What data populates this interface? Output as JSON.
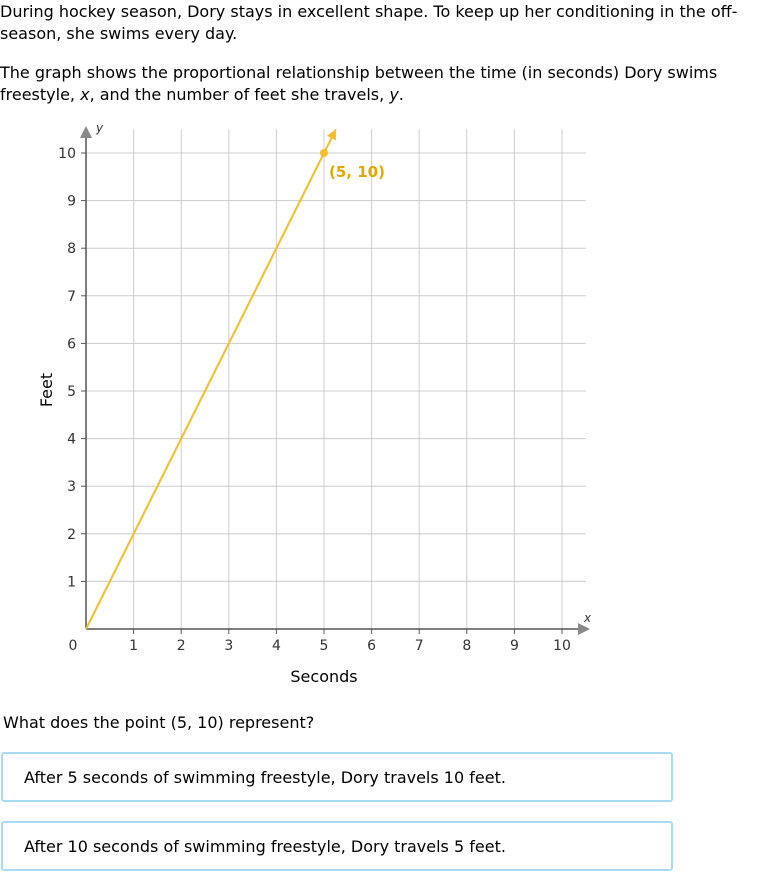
{
  "problem": {
    "intro_1a": "During hockey season, Dory stays in excellent shape. To keep up her conditioning in the off-",
    "intro_1b": "season, she swims every day.",
    "intro_2a": "The graph shows the proportional relationship between the time (in seconds) Dory swims",
    "intro_2b_pre": "freestyle, ",
    "intro_2b_x": "x",
    "intro_2b_mid": ", and the number of feet she travels, ",
    "intro_2b_y": "y",
    "intro_2b_end": ".",
    "question": "What does the point (5, 10) represent?"
  },
  "choices": [
    {
      "label": "After 5 seconds of swimming freestyle, Dory travels 10 feet."
    },
    {
      "label": "After 10 seconds of swimming freestyle, Dory travels 5 feet."
    }
  ],
  "colors": {
    "line": "#f5bd2a",
    "point_label": "#e1a800",
    "grid": "#cccccc",
    "axis": "#555555",
    "choice_border": "#a8dcf2"
  },
  "chart_data": {
    "type": "line",
    "xlabel": "Seconds",
    "ylabel": "Feet",
    "x_axis_name": "x",
    "y_axis_name": "y",
    "xlim": [
      0,
      10
    ],
    "ylim": [
      0,
      10
    ],
    "grid": true,
    "x_ticks": [
      "0",
      "1",
      "2",
      "3",
      "4",
      "5",
      "6",
      "7",
      "8",
      "9",
      "10"
    ],
    "y_ticks": [
      "1",
      "2",
      "3",
      "4",
      "5",
      "6",
      "7",
      "8",
      "9",
      "10"
    ],
    "series": [
      {
        "points": [
          [
            0,
            0
          ],
          [
            5,
            10
          ]
        ]
      }
    ],
    "highlighted_point": {
      "x": 5,
      "y": 10,
      "label": "(5, 10)"
    }
  }
}
